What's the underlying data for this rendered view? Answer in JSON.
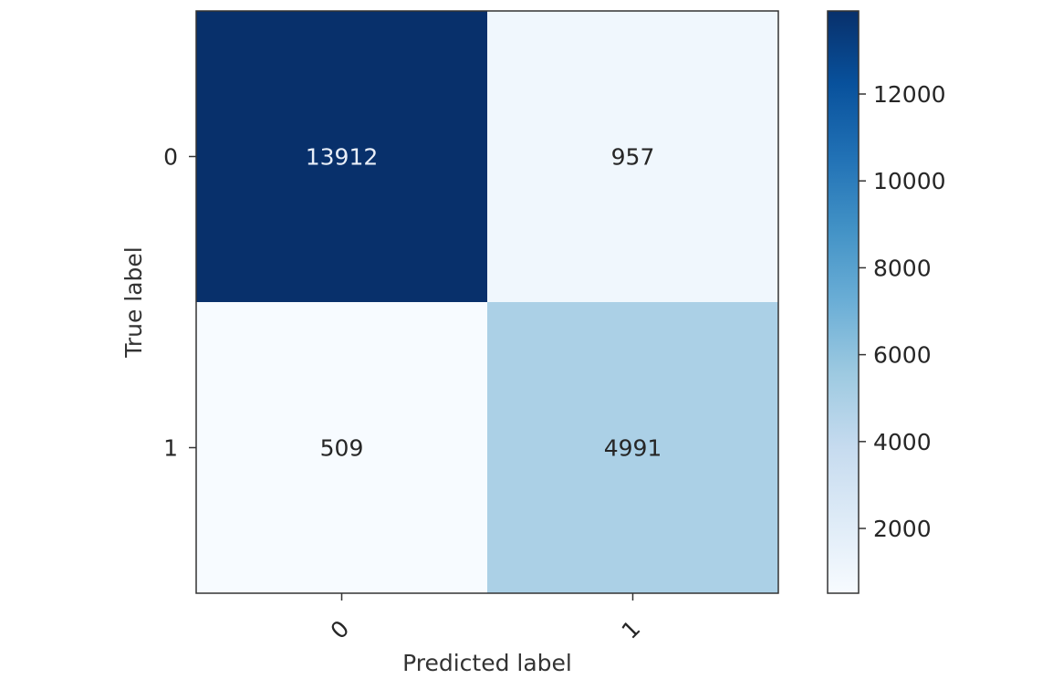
{
  "chart_data": {
    "type": "heatmap",
    "title": "",
    "xlabel": "Predicted label",
    "ylabel": "True label",
    "x_categories": [
      "0",
      "1"
    ],
    "y_categories": [
      "0",
      "1"
    ],
    "matrix": [
      [
        13912,
        957
      ],
      [
        509,
        4991
      ]
    ],
    "colorbar": {
      "range": [
        509,
        13912
      ],
      "ticks": [
        2000,
        4000,
        6000,
        8000,
        10000,
        12000
      ],
      "colormap": "Blues"
    },
    "grid": false
  }
}
